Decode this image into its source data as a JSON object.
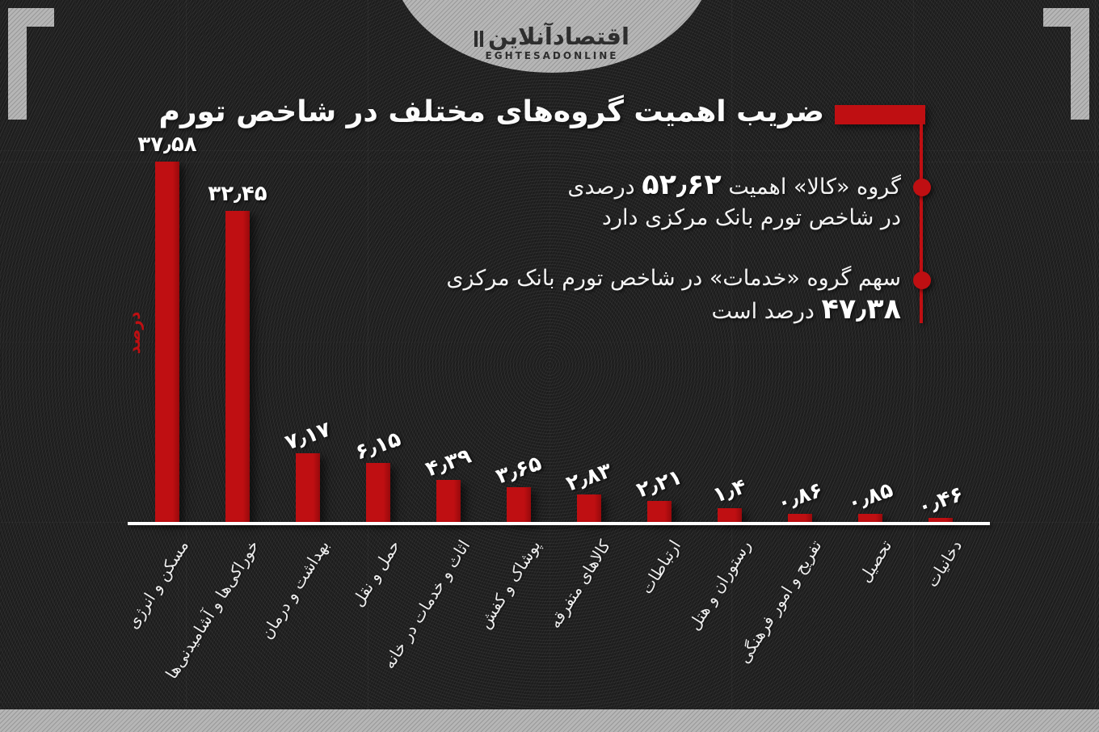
{
  "page": {
    "logo": {
      "persian": "اقتصادآنلاین",
      "latin": "EGHTESADONLINE"
    },
    "title": "ضریب اهمیت گروه‌های مختلف در شاخص تورم",
    "annotations": {
      "ann1": {
        "pre": "گروه «کالا» اهمیت ",
        "num": "۵۲٫۶۲",
        "post": " درصدی",
        "line2": "در شاخص تورم بانک مرکزی دارد"
      },
      "ann2": {
        "line1": "سهم گروه «خدمات» در شاخص تورم بانک مرکزی",
        "num": "۴۷٫۳۸",
        "post": " درصد است"
      }
    },
    "icons": {
      "bullet": "filled-circle",
      "corner_bracket": "L-shape"
    },
    "colors": {
      "accent_red": "#bf0f12",
      "background_dark": "#242424",
      "gray_band": "#b6b6b6",
      "text_white": "#ffffff",
      "logo_dark": "#2e2e2e"
    }
  },
  "chart_data": {
    "type": "bar",
    "title": "ضریب اهمیت گروه‌های مختلف در شاخص تورم",
    "xlabel": "",
    "ylabel": "درصد",
    "ylim": [
      0,
      40
    ],
    "grid": "faint",
    "legend": "none",
    "bar_color": "#bf0f12",
    "categories": [
      "مسکن و انرژی",
      "خوراکی‌ها و آشامیدنی‌ها",
      "بهداشت و درمان",
      "حمل و نقل",
      "اثاث و خدمات در خانه",
      "پوشاک و کفش",
      "کالاهای متفرقه",
      "ارتباطات",
      "رستوران و هتل",
      "تفریح و امور فرهنگی",
      "تحصیل",
      "دخانیات"
    ],
    "values": [
      37.58,
      32.45,
      7.17,
      6.15,
      4.39,
      3.65,
      2.83,
      2.21,
      1.4,
      0.86,
      0.85,
      0.46
    ],
    "value_labels": [
      "۳۷٫۵۸",
      "۳۲٫۴۵",
      "۷٫۱۷",
      "۶٫۱۵",
      "۴٫۳۹",
      "۳٫۶۵",
      "۲٫۸۳",
      "۲٫۲۱",
      "۱٫۴",
      "۰٫۸۶",
      "۰٫۸۵",
      "۰٫۴۶"
    ]
  }
}
